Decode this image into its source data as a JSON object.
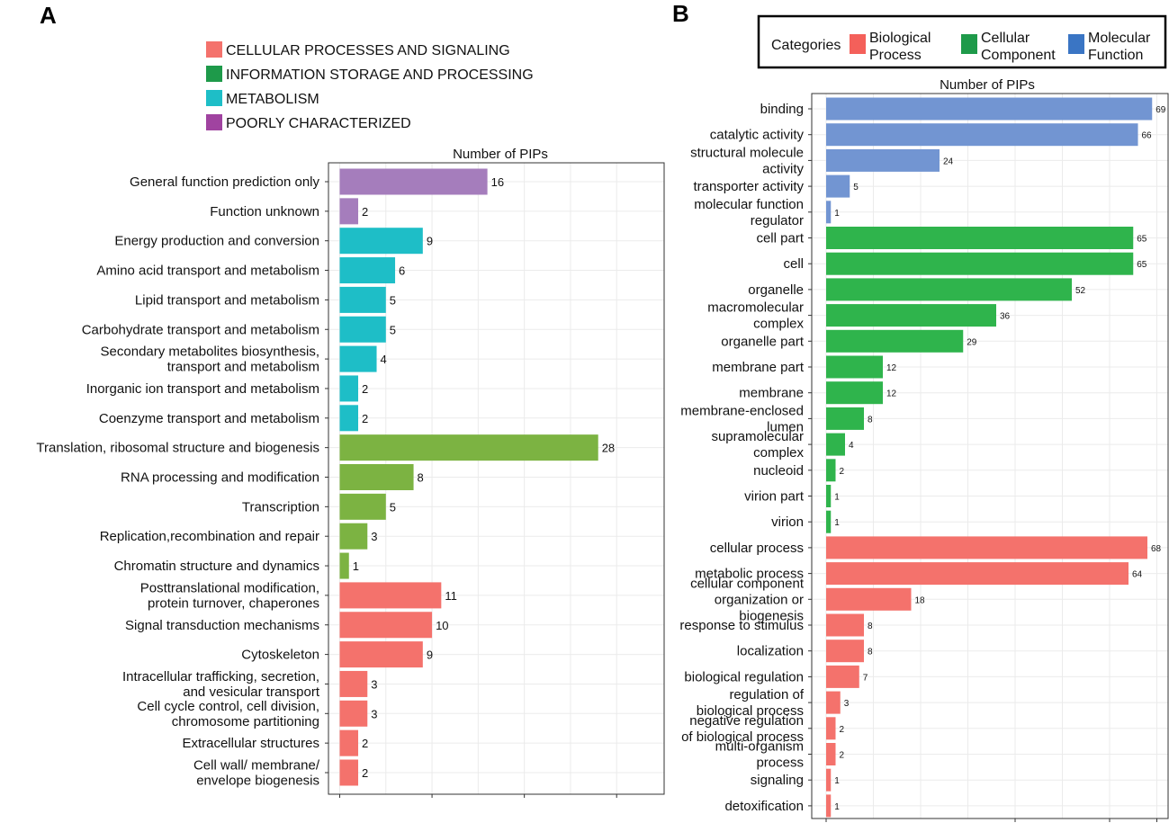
{
  "panel_labels": {
    "a": "A",
    "b": "B"
  },
  "colors": {
    "cellular_processes": "#F4726C",
    "information_storage": "#7CB342",
    "metabolism": "#1EBEC7",
    "poorly_characterized": "#A57DBC",
    "legend_cellular_processes": "#F4726C",
    "legend_information_storage": "#1E9A4A",
    "legend_metabolism": "#1EBEC7",
    "legend_poorly_characterized": "#A043A0",
    "biological_process": "#F4726C",
    "cellular_component": "#2FB44C",
    "molecular_function": "#7295D2",
    "legend_biological_process": "#F4605A",
    "legend_cellular_component": "#1E9A4A",
    "legend_molecular_function": "#3A75C4"
  },
  "legend_a": [
    {
      "label": "CELLULAR PROCESSES AND SIGNALING",
      "color_key": "legend_cellular_processes"
    },
    {
      "label": "INFORMATION STORAGE AND PROCESSING",
      "color_key": "legend_information_storage"
    },
    {
      "label": "METABOLISM",
      "color_key": "legend_metabolism"
    },
    {
      "label": "POORLY CHARACTERIZED",
      "color_key": "legend_poorly_characterized"
    }
  ],
  "legend_b": {
    "title": "Categories",
    "items": [
      {
        "lines": [
          "Biological",
          "Process"
        ],
        "color_key": "legend_biological_process"
      },
      {
        "lines": [
          "Cellular",
          "Component"
        ],
        "color_key": "legend_cellular_component"
      },
      {
        "lines": [
          "Molecular",
          "Function"
        ],
        "color_key": "legend_molecular_function"
      }
    ]
  },
  "chart_data": [
    {
      "type": "bar",
      "orientation": "horizontal",
      "title": "Number of PIPs",
      "xlim": [
        0,
        35
      ],
      "categories": [
        {
          "lines": [
            "General function prediction only"
          ],
          "value": 16,
          "group": "poorly_characterized"
        },
        {
          "lines": [
            "Function unknown"
          ],
          "value": 2,
          "group": "poorly_characterized"
        },
        {
          "lines": [
            "Energy production and conversion"
          ],
          "value": 9,
          "group": "metabolism"
        },
        {
          "lines": [
            "Amino acid transport and metabolism"
          ],
          "value": 6,
          "group": "metabolism"
        },
        {
          "lines": [
            "Lipid transport and metabolism"
          ],
          "value": 5,
          "group": "metabolism"
        },
        {
          "lines": [
            "Carbohydrate transport and metabolism"
          ],
          "value": 5,
          "group": "metabolism"
        },
        {
          "lines": [
            "Secondary metabolites biosynthesis,",
            "transport and metabolism"
          ],
          "value": 4,
          "group": "metabolism"
        },
        {
          "lines": [
            "Inorganic ion transport and metabolism"
          ],
          "value": 2,
          "group": "metabolism"
        },
        {
          "lines": [
            "Coenzyme transport and metabolism"
          ],
          "value": 2,
          "group": "metabolism"
        },
        {
          "lines": [
            "Translation, ribosomal structure and biogenesis"
          ],
          "value": 28,
          "group": "information_storage"
        },
        {
          "lines": [
            "RNA processing and modification"
          ],
          "value": 8,
          "group": "information_storage"
        },
        {
          "lines": [
            "Transcription"
          ],
          "value": 5,
          "group": "information_storage"
        },
        {
          "lines": [
            "Replication,recombination and repair"
          ],
          "value": 3,
          "group": "information_storage"
        },
        {
          "lines": [
            "Chromatin structure and dynamics"
          ],
          "value": 1,
          "group": "information_storage"
        },
        {
          "lines": [
            "Posttranslational modification,",
            "protein turnover, chaperones"
          ],
          "value": 11,
          "group": "cellular_processes"
        },
        {
          "lines": [
            "Signal transduction mechanisms"
          ],
          "value": 10,
          "group": "cellular_processes"
        },
        {
          "lines": [
            "Cytoskeleton"
          ],
          "value": 9,
          "group": "cellular_processes"
        },
        {
          "lines": [
            "Intracellular trafficking, secretion,",
            "and vesicular transport"
          ],
          "value": 3,
          "group": "cellular_processes"
        },
        {
          "lines": [
            "Cell cycle control, cell division,",
            "chromosome partitioning"
          ],
          "value": 3,
          "group": "cellular_processes"
        },
        {
          "lines": [
            "Extracellular structures"
          ],
          "value": 2,
          "group": "cellular_processes"
        },
        {
          "lines": [
            "Cell wall/ membrane/",
            "envelope biogenesis"
          ],
          "value": 2,
          "group": "cellular_processes"
        }
      ]
    },
    {
      "type": "bar",
      "orientation": "horizontal",
      "title": "Number of PIPs",
      "xlim": [
        0,
        72
      ],
      "categories": [
        {
          "lines": [
            "binding"
          ],
          "value": 69,
          "group": "molecular_function"
        },
        {
          "lines": [
            "catalytic activity"
          ],
          "value": 66,
          "group": "molecular_function"
        },
        {
          "lines": [
            "structural molecule",
            "activity"
          ],
          "value": 24,
          "group": "molecular_function"
        },
        {
          "lines": [
            "transporter activity"
          ],
          "value": 5,
          "group": "molecular_function"
        },
        {
          "lines": [
            "molecular function",
            "regulator"
          ],
          "value": 1,
          "group": "molecular_function"
        },
        {
          "lines": [
            "cell part"
          ],
          "value": 65,
          "group": "cellular_component"
        },
        {
          "lines": [
            "cell"
          ],
          "value": 65,
          "group": "cellular_component"
        },
        {
          "lines": [
            "organelle"
          ],
          "value": 52,
          "group": "cellular_component"
        },
        {
          "lines": [
            "macromolecular",
            "complex"
          ],
          "value": 36,
          "group": "cellular_component"
        },
        {
          "lines": [
            "organelle part"
          ],
          "value": 29,
          "group": "cellular_component"
        },
        {
          "lines": [
            "membrane part"
          ],
          "value": 12,
          "group": "cellular_component"
        },
        {
          "lines": [
            "membrane"
          ],
          "value": 12,
          "group": "cellular_component"
        },
        {
          "lines": [
            "membrane-enclosed",
            "lumen"
          ],
          "value": 8,
          "group": "cellular_component"
        },
        {
          "lines": [
            "supramolecular",
            "complex"
          ],
          "value": 4,
          "group": "cellular_component"
        },
        {
          "lines": [
            "nucleoid"
          ],
          "value": 2,
          "group": "cellular_component"
        },
        {
          "lines": [
            "virion part"
          ],
          "value": 1,
          "group": "cellular_component"
        },
        {
          "lines": [
            "virion"
          ],
          "value": 1,
          "group": "cellular_component"
        },
        {
          "lines": [
            "cellular process"
          ],
          "value": 68,
          "group": "biological_process"
        },
        {
          "lines": [
            "metabolic process"
          ],
          "value": 64,
          "group": "biological_process"
        },
        {
          "lines": [
            "cellular component",
            "organization or",
            "biogenesis"
          ],
          "value": 18,
          "group": "biological_process"
        },
        {
          "lines": [
            "response to stimulus"
          ],
          "value": 8,
          "group": "biological_process"
        },
        {
          "lines": [
            "localization"
          ],
          "value": 8,
          "group": "biological_process"
        },
        {
          "lines": [
            "biological regulation"
          ],
          "value": 7,
          "group": "biological_process"
        },
        {
          "lines": [
            "regulation of",
            "biological process"
          ],
          "value": 3,
          "group": "biological_process"
        },
        {
          "lines": [
            "negative regulation",
            "of biological process"
          ],
          "value": 2,
          "group": "biological_process"
        },
        {
          "lines": [
            "multi-organism",
            "process"
          ],
          "value": 2,
          "group": "biological_process"
        },
        {
          "lines": [
            "signaling"
          ],
          "value": 1,
          "group": "biological_process"
        },
        {
          "lines": [
            "detoxification"
          ],
          "value": 1,
          "group": "biological_process"
        }
      ]
    }
  ]
}
